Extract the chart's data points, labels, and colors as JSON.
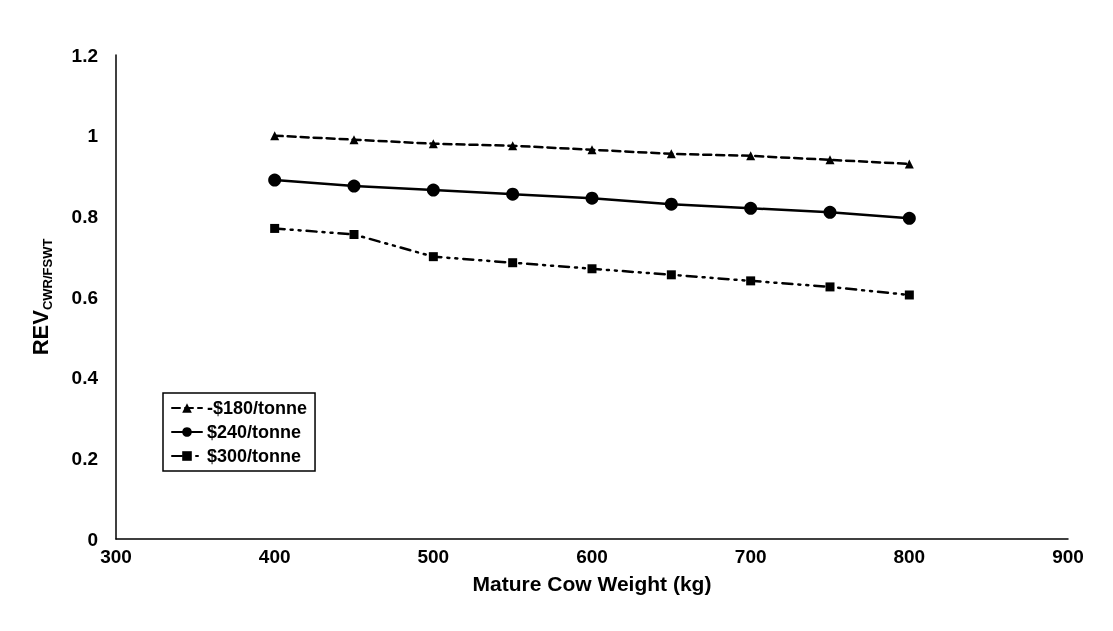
{
  "chart_data": {
    "type": "line",
    "xlabel": "Mature Cow Weight (kg)",
    "ylabel": "REV$_{CWR/FSWT}$",
    "x": [
      400,
      450,
      500,
      550,
      600,
      650,
      700,
      750,
      800
    ],
    "xlim": [
      300,
      900
    ],
    "xticks": [
      300,
      400,
      500,
      600,
      700,
      800,
      900
    ],
    "ylim": [
      0,
      1.2
    ],
    "yticks": [
      0,
      0.2,
      0.4,
      0.6,
      0.8,
      1,
      1.2
    ],
    "grid": false,
    "legend": "left",
    "series": [
      {
        "name": "-$180/tonne",
        "color": "#000000",
        "marker": "triangle",
        "line_style": "dashed",
        "values": [
          1.0,
          0.99,
          0.98,
          0.975,
          0.965,
          0.955,
          0.95,
          0.94,
          0.93
        ]
      },
      {
        "name": "$240/tonne",
        "color": "#000000",
        "marker": "circle",
        "line_style": "solid",
        "values": [
          0.89,
          0.875,
          0.865,
          0.855,
          0.845,
          0.83,
          0.82,
          0.81,
          0.795
        ]
      },
      {
        "name": "$300/tonne",
        "color": "#000000",
        "marker": "square",
        "line_style": "dashdot",
        "values": [
          0.77,
          0.755,
          0.7,
          0.685,
          0.67,
          0.655,
          0.64,
          0.625,
          0.605
        ]
      }
    ]
  }
}
